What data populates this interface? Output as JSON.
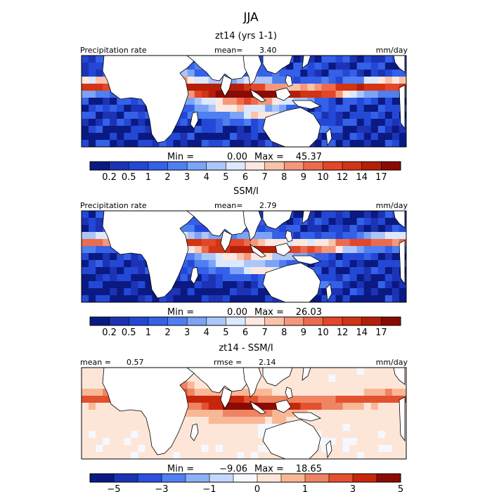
{
  "figure": {
    "title": "JJA"
  },
  "colors": {
    "land": "#ffffff",
    "frame": "#000000",
    "seq_scale": [
      "#0a1a82",
      "#1c33b5",
      "#2448d6",
      "#3560e8",
      "#4f7ff0",
      "#7ca3f6",
      "#adc6fa",
      "#dbe8fd",
      "#fde8e0",
      "#f9c2aa",
      "#f3987a",
      "#ec6b4e",
      "#e34628",
      "#d23414",
      "#b51f0a",
      "#8a0b04"
    ],
    "div_scale": [
      "#0a1a82",
      "#1c33b5",
      "#2a50dd",
      "#4f7ff0",
      "#8cb0f7",
      "#c4d8fc",
      "#f6f8ff",
      "#fde6d8",
      "#f8b896",
      "#ef8462",
      "#e4512f",
      "#c8260c",
      "#8a0b04"
    ]
  },
  "chart_data": [
    {
      "type": "heatmap",
      "panel_title": "zt14 (yrs 1-1)",
      "field_label": "Precipitation rate",
      "mean_label": "mean=",
      "mean_value": "3.40",
      "units": "mm/day",
      "min_label": "Min =",
      "min_value": "0.00",
      "max_label": "Max =",
      "max_value": "45.37",
      "colorbar_ticks": [
        "0.2",
        "0.5",
        "1",
        "2",
        "3",
        "4",
        "5",
        "6",
        "7",
        "8",
        "9",
        "10",
        "12",
        "14",
        "17"
      ],
      "colorbar_levels": 16,
      "scale": "seq",
      "field": "model"
    },
    {
      "type": "heatmap",
      "panel_title": "SSM/I",
      "field_label": "Precipitation rate",
      "mean_label": "mean=",
      "mean_value": "2.79",
      "units": "mm/day",
      "min_label": "Min =",
      "min_value": "0.00",
      "max_label": "Max =",
      "max_value": "26.03",
      "colorbar_ticks": [
        "0.2",
        "0.5",
        "1",
        "2",
        "3",
        "4",
        "5",
        "6",
        "7",
        "8",
        "9",
        "10",
        "12",
        "14",
        "17"
      ],
      "colorbar_levels": 16,
      "scale": "seq",
      "field": "obs"
    },
    {
      "type": "heatmap",
      "panel_title": "zt14 - SSM/I",
      "field_label": "",
      "mean_label": "mean =",
      "mean_value": "0.57",
      "rmse_label": "rmse =",
      "rmse_value": "2.14",
      "units": "mm/day",
      "min_label": "Min =",
      "min_value": "−9.06",
      "max_label": "Max =",
      "max_value": "18.65",
      "colorbar_ticks": [
        "−5",
        "−3",
        "−1",
        "0",
        "1",
        "3",
        "5"
      ],
      "colorbar_levels": 13,
      "scale": "div",
      "field": "diff"
    }
  ]
}
